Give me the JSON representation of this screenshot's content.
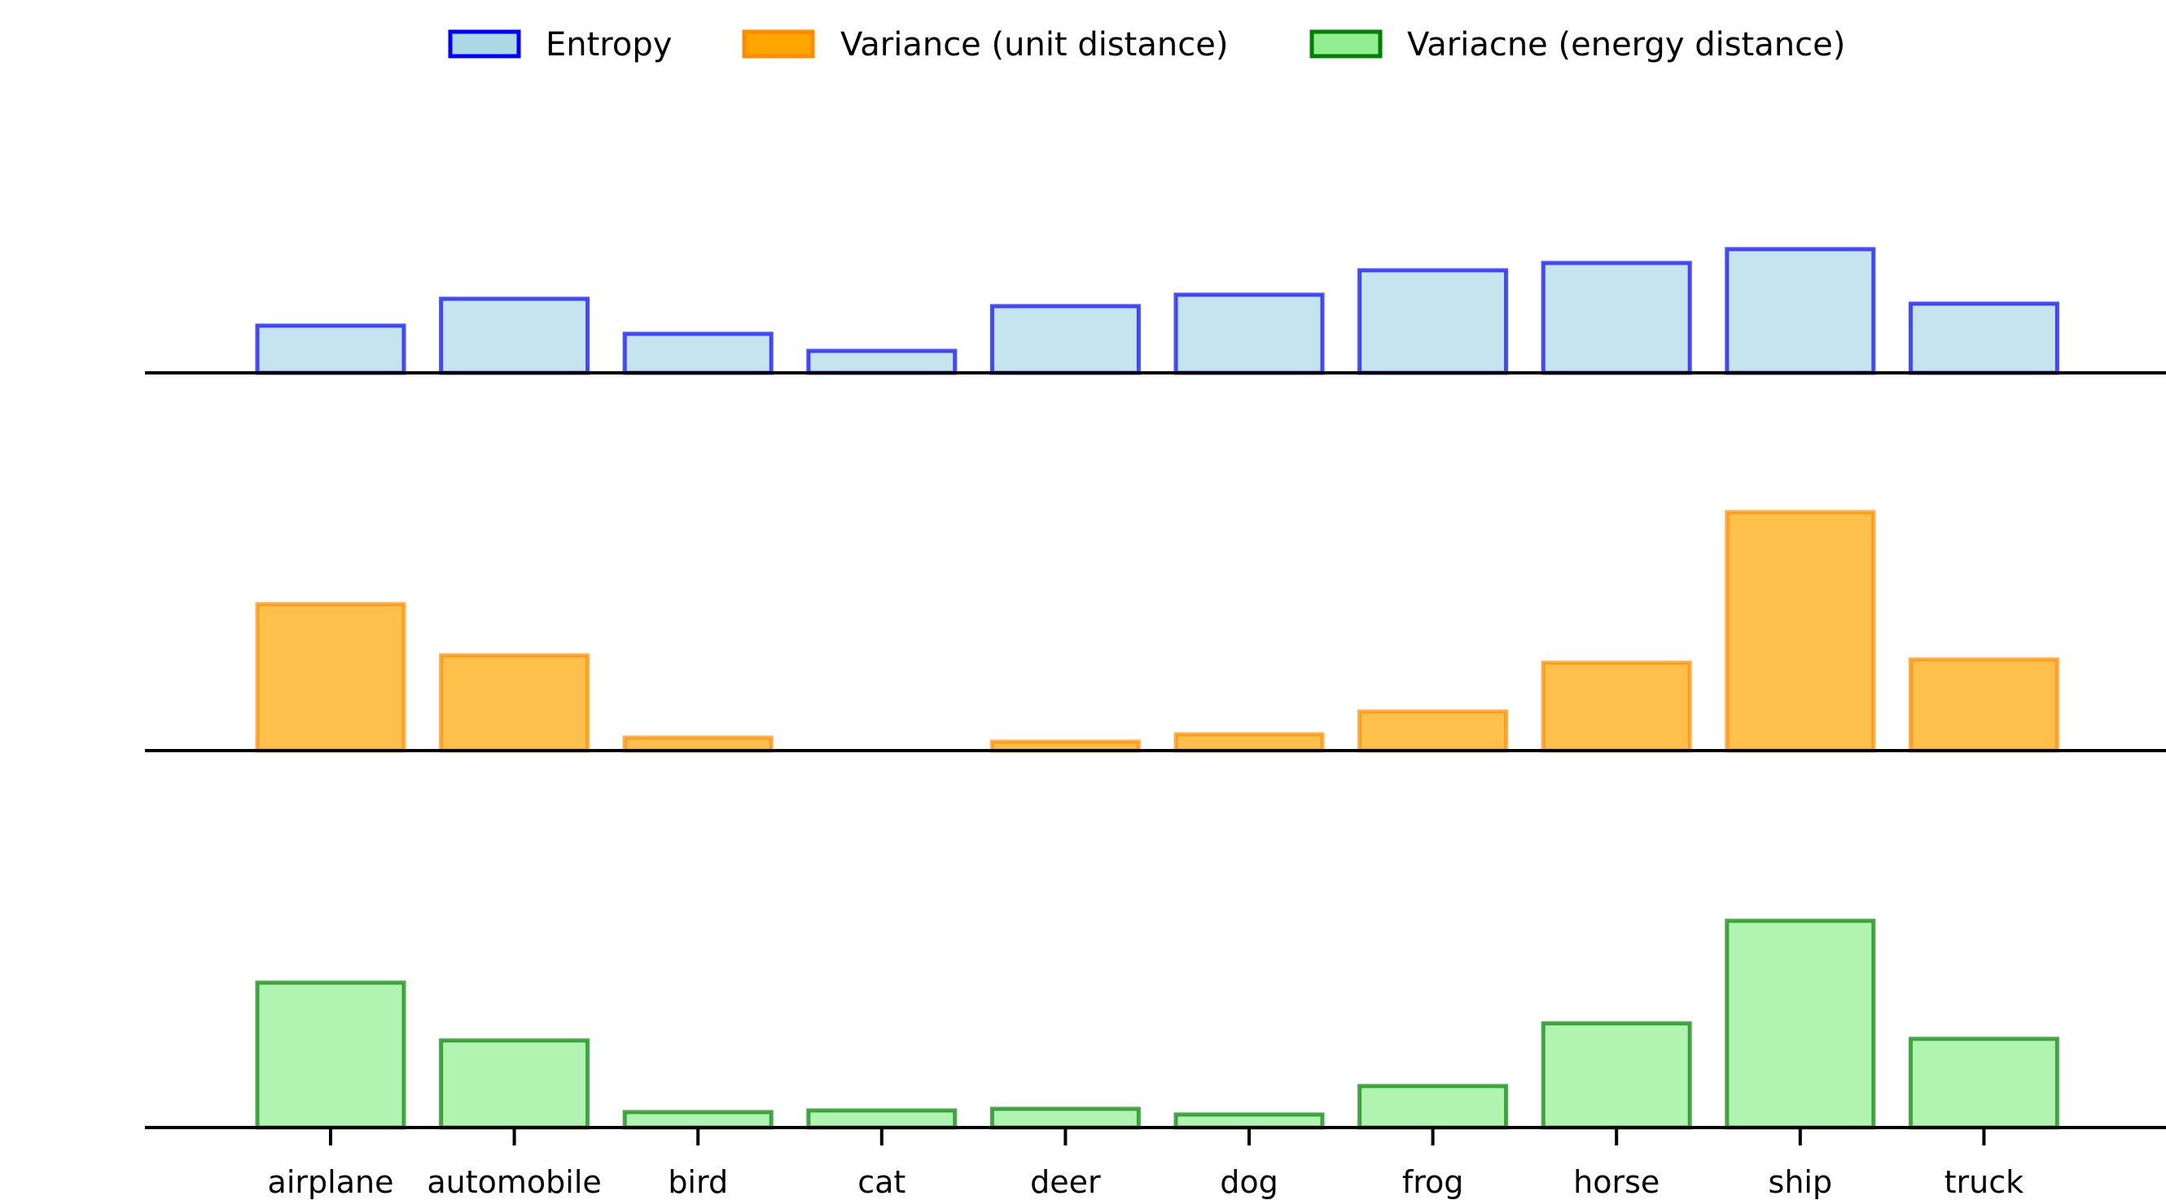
{
  "chart_data": {
    "type": "bar",
    "layout": "stacked-panels",
    "categories": [
      "airplane",
      "automobile",
      "bird",
      "cat",
      "deer",
      "dog",
      "frog",
      "horse",
      "ship",
      "truck"
    ],
    "series": [
      {
        "name": "Entropy",
        "values": [
          58,
          91,
          48,
          27,
          82,
          96,
          126,
          135,
          152,
          85
        ],
        "fill": "#add8e6",
        "edge": "#0000ff",
        "panel": 0
      },
      {
        "name": "Variance (unit distance)",
        "values": [
          180,
          117,
          16,
          0,
          11,
          20,
          48,
          108,
          293,
          112
        ],
        "fill": "#ffa500",
        "edge": "#ff8c00",
        "panel": 1
      },
      {
        "name": "Variacne (energy distance)",
        "values": [
          178,
          107,
          19,
          21,
          23,
          16,
          51,
          128,
          254,
          109
        ],
        "fill": "#90ee90",
        "edge": "#008000",
        "panel": 2
      }
    ],
    "ylim": [
      0,
      300
    ],
    "grid": false,
    "legend_position": "top-center",
    "xlabel": "",
    "ylabel": "",
    "title": ""
  }
}
